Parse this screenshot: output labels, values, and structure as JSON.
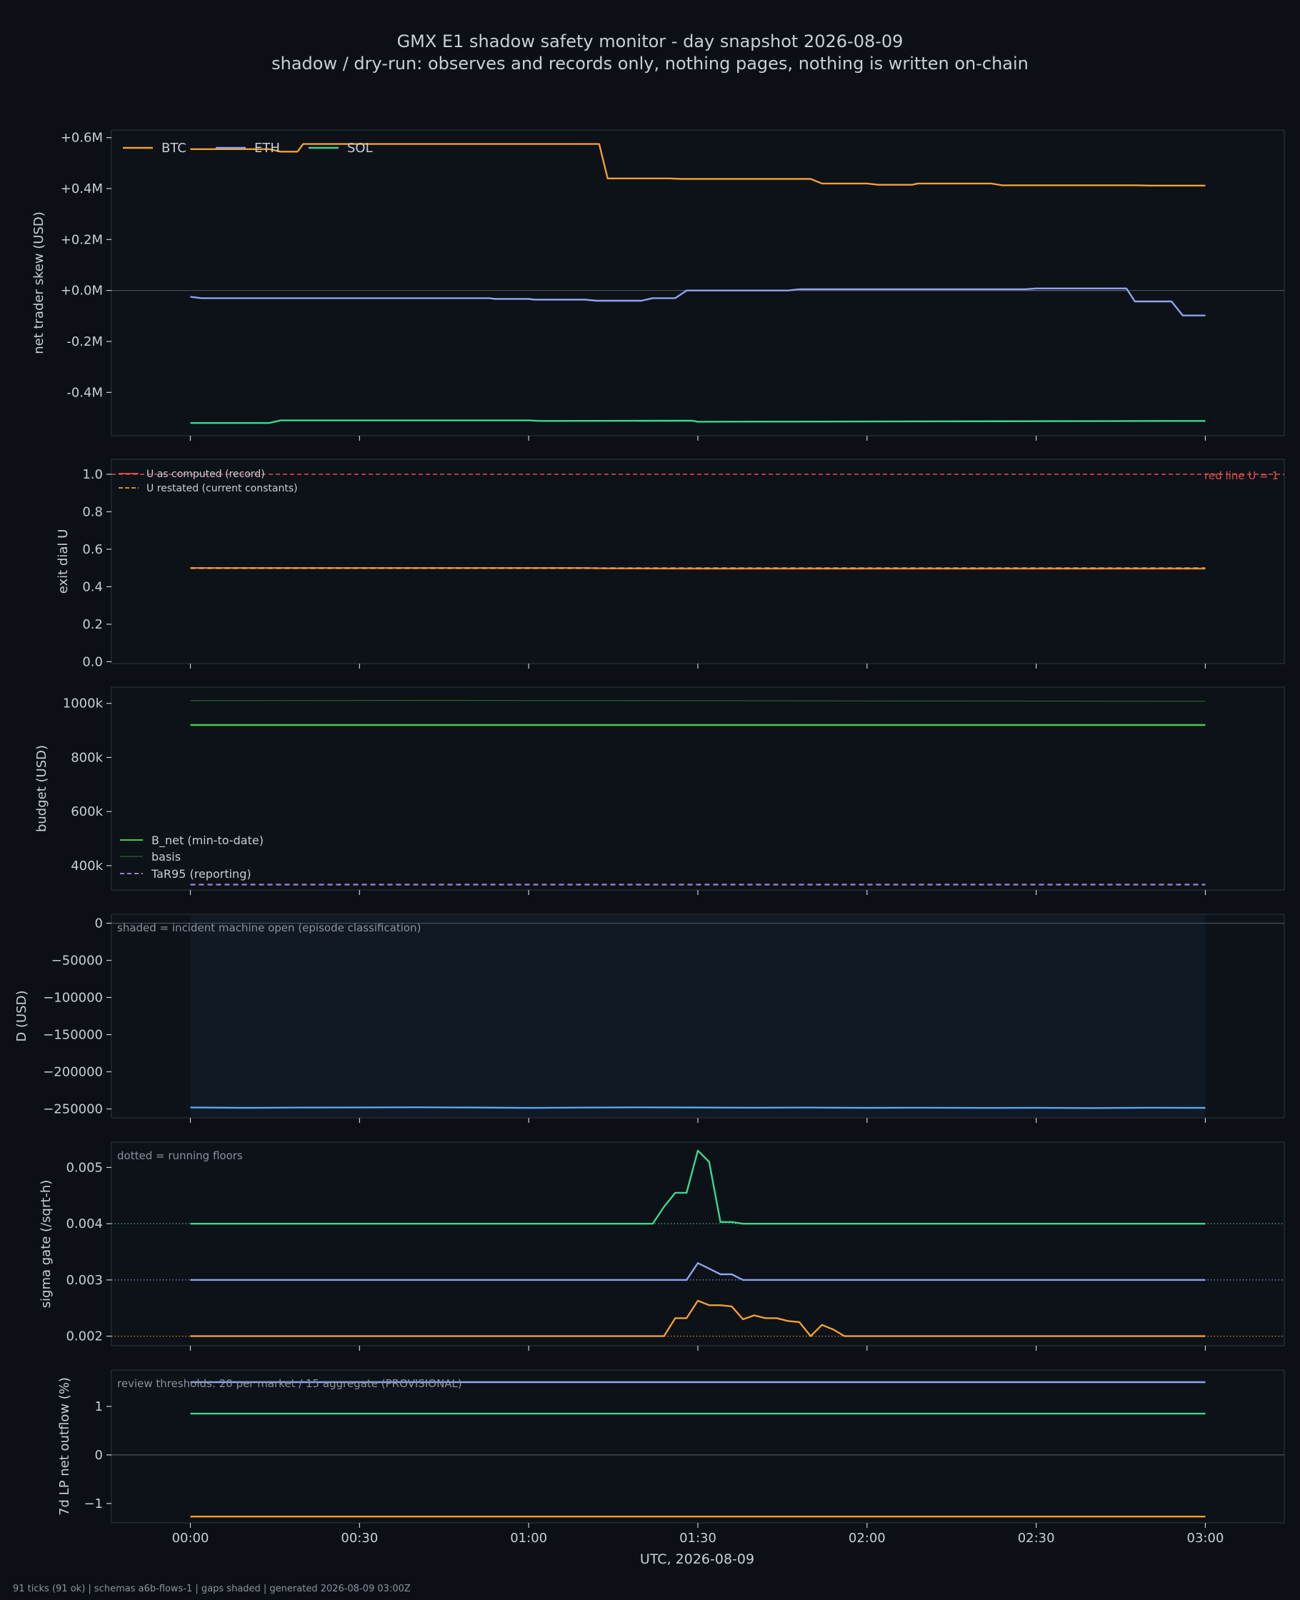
{
  "title": "GMX E1 shadow safety monitor - day snapshot 2026-08-09",
  "subtitle": "shadow / dry-run: observes and records only, nothing pages, nothing is written on-chain",
  "footer": "91 ticks (91 ok) | schemas a6b-flows-1 | gaps shaded | generated 2026-08-09 03:00Z",
  "colors": {
    "background": "#0c1016",
    "panel": "#0d1118",
    "frame": "#2a303a",
    "text": "#c9ced6",
    "muted": "#8a929e",
    "btc": "#f0a030",
    "eth": "#8fa3f0",
    "sol": "#38d98f",
    "b_net": "#3fcf4f",
    "basis": "#1e6b2e",
    "tar95": "#9d7fd4",
    "d_line": "#5aa6ef",
    "redline": "#e05050",
    "u_record": "#e05050",
    "u_restated": "#e0a040",
    "u_line": "#f07a2a",
    "shade": "#0f1a24"
  },
  "chart_data": {
    "type": "line",
    "x_ticks": [
      "00:00",
      "00:30",
      "01:00",
      "01:30",
      "02:00",
      "02:30",
      "03:00"
    ],
    "xlabel": "UTC, 2026-08-09",
    "xlim": [
      -14,
      194
    ],
    "panels": [
      {
        "id": "skew",
        "ylabel": "net trader skew (USD)",
        "ylim": [
          -0.57,
          0.63
        ],
        "yticks": [
          0.6,
          0.4,
          0.2,
          0.0,
          -0.2,
          -0.4
        ],
        "ytick_labels": [
          "+0.6M",
          "+0.4M",
          "+0.2M",
          "+0.0M",
          "-0.2M",
          "-0.4M"
        ],
        "zero_line": true,
        "legend": {
          "placement": "top-left",
          "entries": [
            "BTC",
            "ETH",
            "SOL"
          ]
        },
        "series": [
          {
            "name": "BTC",
            "color_key": "btc",
            "points": [
              [
                0,
                0.555
              ],
              [
                14,
                0.555
              ],
              [
                16,
                0.545
              ],
              [
                19,
                0.545
              ],
              [
                20,
                0.575
              ],
              [
                70,
                0.575
              ],
              [
                72,
                0.575
              ],
              [
                72.5,
                0.575
              ],
              [
                74,
                0.44
              ],
              [
                85,
                0.44
              ],
              [
                87,
                0.438
              ],
              [
                110,
                0.438
              ],
              [
                112,
                0.42
              ],
              [
                120,
                0.42
              ],
              [
                122,
                0.415
              ],
              [
                128,
                0.415
              ],
              [
                129,
                0.42
              ],
              [
                142,
                0.42
              ],
              [
                144,
                0.413
              ],
              [
                168,
                0.413
              ],
              [
                170,
                0.412
              ],
              [
                180,
                0.412
              ]
            ]
          },
          {
            "name": "ETH",
            "color_key": "eth",
            "points": [
              [
                0,
                -0.025
              ],
              [
                2,
                -0.03
              ],
              [
                53,
                -0.03
              ],
              [
                54,
                -0.033
              ],
              [
                60,
                -0.033
              ],
              [
                61,
                -0.036
              ],
              [
                70,
                -0.036
              ],
              [
                72,
                -0.04
              ],
              [
                80,
                -0.04
              ],
              [
                82,
                -0.03
              ],
              [
                86,
                -0.03
              ],
              [
                88,
                0.0
              ],
              [
                106,
                0.0
              ],
              [
                108,
                0.005
              ],
              [
                148,
                0.005
              ],
              [
                150,
                0.008
              ],
              [
                166,
                0.008
              ],
              [
                167.5,
                -0.043
              ],
              [
                174,
                -0.043
              ],
              [
                176,
                -0.098
              ],
              [
                180,
                -0.098
              ]
            ]
          },
          {
            "name": "SOL",
            "color_key": "sol",
            "points": [
              [
                0,
                -0.52
              ],
              [
                14,
                -0.52
              ],
              [
                16,
                -0.51
              ],
              [
                60,
                -0.51
              ],
              [
                62,
                -0.512
              ],
              [
                89,
                -0.511
              ],
              [
                90,
                -0.515
              ],
              [
                180,
                -0.512
              ]
            ]
          }
        ],
        "ghost_series": {
          "color_key": "muted",
          "points": [
            [
              108,
              0.0
            ],
            [
              166,
              0.0
            ]
          ]
        }
      },
      {
        "id": "exit-dial",
        "ylabel": "exit dial U",
        "ylim": [
          -0.01,
          1.08
        ],
        "yticks": [
          1.0,
          0.8,
          0.6,
          0.4,
          0.2,
          0.0
        ],
        "ytick_labels": [
          "1.0",
          "0.8",
          "0.6",
          "0.4",
          "0.2",
          "0.0"
        ],
        "legend": {
          "placement": "top-left",
          "entries": [
            "U as computed (record)",
            "U restated (current constants)"
          ]
        },
        "annotation": "red line U = 1",
        "redline_value": 1.0,
        "series": [
          {
            "name": "U as computed (record)",
            "color_key": "u_line",
            "points": [
              [
                0,
                0.5
              ],
              [
                70,
                0.5
              ],
              [
                73,
                0.498
              ],
              [
                88,
                0.497
              ],
              [
                180,
                0.497
              ]
            ]
          },
          {
            "name": "U restated (current constants)",
            "color_key": "u_restated",
            "dashed": true,
            "points": [
              [
                0,
                0.499
              ],
              [
                180,
                0.499
              ]
            ]
          }
        ]
      },
      {
        "id": "budget",
        "ylabel": "budget (USD)",
        "ylim": [
          310000,
          1060000
        ],
        "yticks": [
          1000000,
          800000,
          600000,
          400000
        ],
        "ytick_labels": [
          "1000k",
          "800k",
          "600k",
          "400k"
        ],
        "legend": {
          "placement": "lower-left",
          "entries": [
            "B_net (min-to-date)",
            "basis",
            "TaR95 (reporting)"
          ]
        },
        "series": [
          {
            "name": "B_net (min-to-date)",
            "color_key": "b_net",
            "points": [
              [
                0,
                920000
              ],
              [
                180,
                920000
              ]
            ]
          },
          {
            "name": "basis",
            "color_key": "basis",
            "points": [
              [
                0,
                1010000
              ],
              [
                40,
                1011000
              ],
              [
                80,
                1010000
              ],
              [
                120,
                1009000
              ],
              [
                180,
                1008000
              ]
            ]
          },
          {
            "name": "TaR95 (reporting)",
            "color_key": "tar95",
            "dashed": true,
            "points": [
              [
                0,
                330000
              ],
              [
                180,
                330000
              ]
            ]
          }
        ]
      },
      {
        "id": "drawdown",
        "ylabel": "D (USD)",
        "ylim": [
          -262000,
          12000
        ],
        "yticks": [
          0,
          -50000,
          -100000,
          -150000,
          -200000,
          -250000
        ],
        "ytick_labels": [
          "0",
          "−50000",
          "−100000",
          "−150000",
          "−200000",
          "−250000"
        ],
        "zero_line": true,
        "annotation": "shaded = incident machine open (episode classification)",
        "shade_range": [
          0,
          180
        ],
        "series": [
          {
            "name": "D",
            "color_key": "d_line",
            "points": [
              [
                0,
                -248000
              ],
              [
                10,
                -248500
              ],
              [
                20,
                -248200
              ],
              [
                30,
                -248000
              ],
              [
                40,
                -247800
              ],
              [
                50,
                -248100
              ],
              [
                60,
                -248600
              ],
              [
                70,
                -248200
              ],
              [
                80,
                -247900
              ],
              [
                90,
                -248100
              ],
              [
                100,
                -248300
              ],
              [
                110,
                -248200
              ],
              [
                120,
                -248500
              ],
              [
                130,
                -248300
              ],
              [
                140,
                -248600
              ],
              [
                150,
                -248400
              ],
              [
                160,
                -248800
              ],
              [
                170,
                -248300
              ],
              [
                180,
                -248500
              ]
            ]
          }
        ]
      },
      {
        "id": "sigma",
        "ylabel": "sigma gate (/sqrt-h)",
        "ylim": [
          0.00183,
          0.00545
        ],
        "yticks": [
          0.005,
          0.004,
          0.003,
          0.002
        ],
        "ytick_labels": [
          "0.005",
          "0.004",
          "0.003",
          "0.002"
        ],
        "annotation": "dotted = running floors",
        "floors": [
          {
            "value": 0.004,
            "color_key": "sol"
          },
          {
            "value": 0.003,
            "color_key": "eth"
          },
          {
            "value": 0.002,
            "color_key": "btc"
          }
        ],
        "series": [
          {
            "name": "SOL",
            "color_key": "sol",
            "points": [
              [
                0,
                0.004
              ],
              [
                82,
                0.004
              ],
              [
                84,
                0.0043
              ],
              [
                86,
                0.00455
              ],
              [
                88,
                0.00455
              ],
              [
                90,
                0.0053
              ],
              [
                92,
                0.0051
              ],
              [
                94,
                0.00403
              ],
              [
                96,
                0.00403
              ],
              [
                98,
                0.004
              ],
              [
                180,
                0.004
              ]
            ]
          },
          {
            "name": "ETH",
            "color_key": "eth",
            "points": [
              [
                0,
                0.003
              ],
              [
                88,
                0.003
              ],
              [
                90,
                0.0033
              ],
              [
                92,
                0.0032
              ],
              [
                94,
                0.0031
              ],
              [
                96,
                0.0031
              ],
              [
                98,
                0.003
              ],
              [
                180,
                0.003
              ]
            ]
          },
          {
            "name": "BTC",
            "color_key": "btc",
            "points": [
              [
                0,
                0.002
              ],
              [
                84,
                0.002
              ],
              [
                86,
                0.00232
              ],
              [
                88,
                0.00232
              ],
              [
                90,
                0.00263
              ],
              [
                92,
                0.00255
              ],
              [
                94,
                0.00255
              ],
              [
                96,
                0.00253
              ],
              [
                98,
                0.0023
              ],
              [
                100,
                0.00237
              ],
              [
                102,
                0.00232
              ],
              [
                104,
                0.00232
              ],
              [
                106,
                0.00227
              ],
              [
                108,
                0.00225
              ],
              [
                110,
                0.002
              ],
              [
                112,
                0.0022
              ],
              [
                114,
                0.00212
              ],
              [
                116,
                0.002
              ],
              [
                180,
                0.002
              ]
            ]
          }
        ]
      },
      {
        "id": "lp-outflow",
        "ylabel": "7d LP net outflow (%)",
        "ylim": [
          -1.4,
          1.75
        ],
        "yticks": [
          1,
          0,
          -1
        ],
        "ytick_labels": [
          "1",
          "0",
          "−1"
        ],
        "zero_line": true,
        "annotation": "review thresholds: 20 per market / 15 aggregate (PROVISIONAL)",
        "series": [
          {
            "name": "ETH",
            "color_key": "eth",
            "points": [
              [
                0,
                1.5
              ],
              [
                180,
                1.5
              ]
            ]
          },
          {
            "name": "SOL",
            "color_key": "sol",
            "points": [
              [
                0,
                0.85
              ],
              [
                180,
                0.85
              ]
            ]
          },
          {
            "name": "BTC",
            "color_key": "btc",
            "points": [
              [
                0,
                -1.27
              ],
              [
                180,
                -1.27
              ]
            ]
          }
        ]
      }
    ]
  }
}
